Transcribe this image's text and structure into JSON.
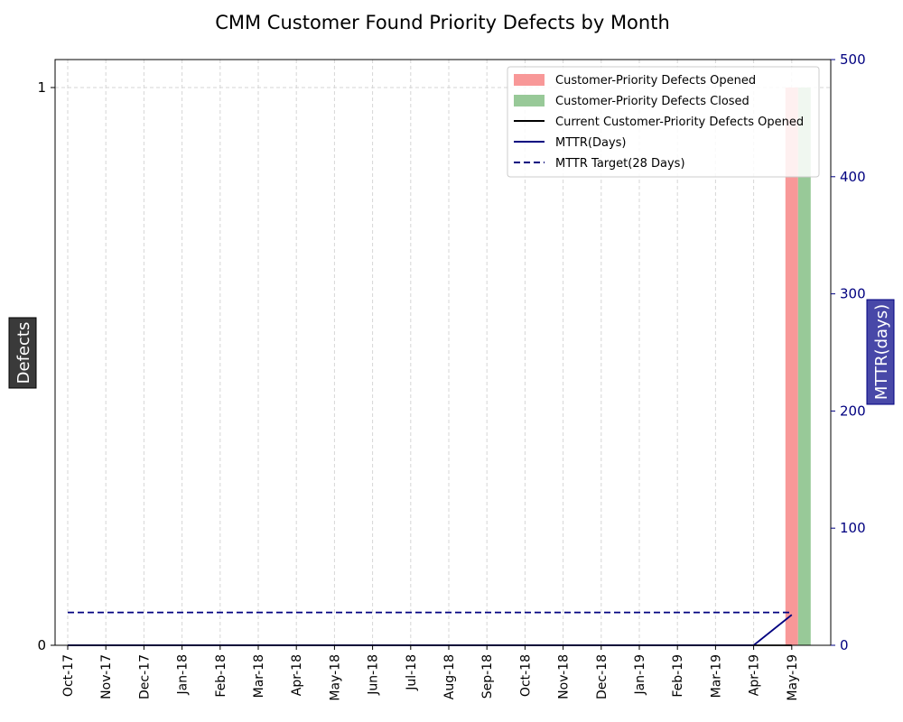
{
  "chart_data": {
    "type": "bar",
    "title": "CMM Customer Found Priority Defects by Month",
    "ylabel": "Defects",
    "y2label": "MTTR(days)",
    "categories": [
      "Oct-17",
      "Nov-17",
      "Dec-17",
      "Jan-18",
      "Feb-18",
      "Mar-18",
      "Apr-18",
      "May-18",
      "Jun-18",
      "Jul-18",
      "Aug-18",
      "Sep-18",
      "Oct-18",
      "Nov-18",
      "Dec-18",
      "Jan-19",
      "Feb-19",
      "Mar-19",
      "Apr-19",
      "May-19"
    ],
    "ylim": [
      0,
      1
    ],
    "y_ticks": [
      "0",
      "1"
    ],
    "y2lim": [
      0,
      500
    ],
    "y2_ticks": [
      "0",
      "100",
      "200",
      "300",
      "400",
      "500"
    ],
    "series": [
      {
        "name": "Customer-Priority Defects Opened",
        "kind": "bar",
        "axis": "left",
        "color": "#f89898",
        "values": [
          0,
          0,
          0,
          0,
          0,
          0,
          0,
          0,
          0,
          0,
          0,
          0,
          0,
          0,
          0,
          0,
          0,
          0,
          0,
          1
        ]
      },
      {
        "name": "Customer-Priority Defects Closed",
        "kind": "bar",
        "axis": "left",
        "color": "#98c998",
        "values": [
          0,
          0,
          0,
          0,
          0,
          0,
          0,
          0,
          0,
          0,
          0,
          0,
          0,
          0,
          0,
          0,
          0,
          0,
          0,
          1
        ]
      },
      {
        "name": "Current Customer-Priority Defects Opened",
        "kind": "line",
        "axis": "left",
        "color": "#000000",
        "values": [
          0,
          0,
          0,
          0,
          0,
          0,
          0,
          0,
          0,
          0,
          0,
          0,
          0,
          0,
          0,
          0,
          0,
          0,
          0,
          0
        ]
      },
      {
        "name": "MTTR(Days)",
        "kind": "line",
        "axis": "right",
        "color": "#000080",
        "values": [
          0,
          0,
          0,
          0,
          0,
          0,
          0,
          0,
          0,
          0,
          0,
          0,
          0,
          0,
          0,
          0,
          0,
          0,
          0,
          26
        ]
      },
      {
        "name": "MTTR Target(28 Days)",
        "kind": "dashed",
        "axis": "right",
        "color": "#000080",
        "values": [
          28,
          28,
          28,
          28,
          28,
          28,
          28,
          28,
          28,
          28,
          28,
          28,
          28,
          28,
          28,
          28,
          28,
          28,
          28,
          28
        ]
      }
    ],
    "grid": true,
    "legend_position": "top-right"
  }
}
